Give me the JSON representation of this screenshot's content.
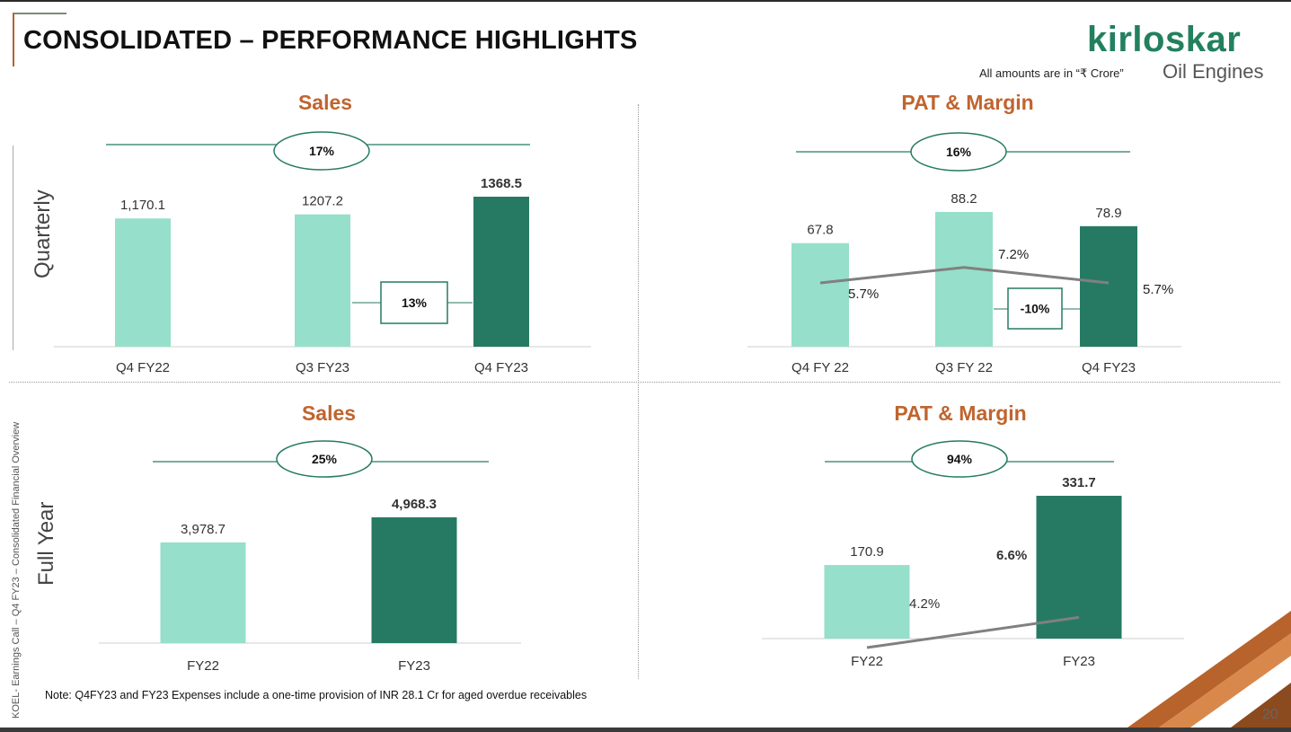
{
  "header": {
    "title": "CONSOLIDATED – PERFORMANCE HIGHLIGHTS",
    "logo_main": "kirloskar",
    "logo_sub": "Oil Engines",
    "amounts_note": "All amounts are in “₹ Crore”"
  },
  "side_text": "KOEL- Earnings Call – Q4 FY23 – Consolidated  Financial Overview",
  "row_labels": {
    "quarterly": "Quarterly",
    "full_year": "Full Year"
  },
  "footer": {
    "note": "Note: Q4FY23 and FY23 Expenses include a one-time provision of INR 28.1 Cr for aged overdue receivables",
    "page_number": "20"
  },
  "colors": {
    "light_bar": "#96dfca",
    "dark_bar": "#267a63",
    "title": "#c0642e",
    "line": "#808080",
    "growth_ellipse": "#267a63"
  },
  "chart_data": [
    {
      "id": "sales-quarterly",
      "type": "bar",
      "title": "Sales",
      "categories": [
        "Q4 FY22",
        "Q3 FY23",
        "Q4 FY23"
      ],
      "values": [
        1170.1,
        1207.2,
        1368.5
      ],
      "value_labels": [
        "1,170.1",
        "1207.2",
        "1368.5"
      ],
      "bold_labels": [
        false,
        false,
        true
      ],
      "growth_overall": "17%",
      "growth_sequential": "13%",
      "ylim": [
        0,
        1368.5
      ]
    },
    {
      "id": "pat-quarterly",
      "type": "bar",
      "title": "PAT & Margin",
      "categories": [
        "Q4 FY 22",
        "Q3 FY 22",
        "Q4 FY23"
      ],
      "values": [
        67.8,
        88.2,
        78.9
      ],
      "value_labels": [
        "67.8",
        "88.2",
        "78.9"
      ],
      "margin_series": {
        "values": [
          5.7,
          7.2,
          5.7
        ],
        "labels": [
          "5.7%",
          "7.2%",
          "5.7%"
        ]
      },
      "growth_overall": "16%",
      "growth_sequential": "-10%",
      "ylim": [
        0,
        88.2
      ]
    },
    {
      "id": "sales-fy",
      "type": "bar",
      "title": "Sales",
      "categories": [
        "FY22",
        "FY23"
      ],
      "values": [
        3978.7,
        4968.3
      ],
      "value_labels": [
        "3,978.7",
        "4,968.3"
      ],
      "bold_labels": [
        false,
        true
      ],
      "growth_overall": "25%",
      "ylim": [
        0,
        4968.3
      ]
    },
    {
      "id": "pat-fy",
      "type": "bar",
      "title": "PAT & Margin",
      "categories": [
        "FY22",
        "FY23"
      ],
      "values": [
        170.9,
        331.7
      ],
      "value_labels": [
        "170.9",
        "331.7"
      ],
      "bold_labels": [
        false,
        true
      ],
      "margin_series": {
        "values": [
          4.2,
          6.6
        ],
        "labels": [
          "4.2%",
          "6.6%"
        ]
      },
      "growth_overall": "94%",
      "ylim": [
        0,
        331.7
      ]
    }
  ]
}
